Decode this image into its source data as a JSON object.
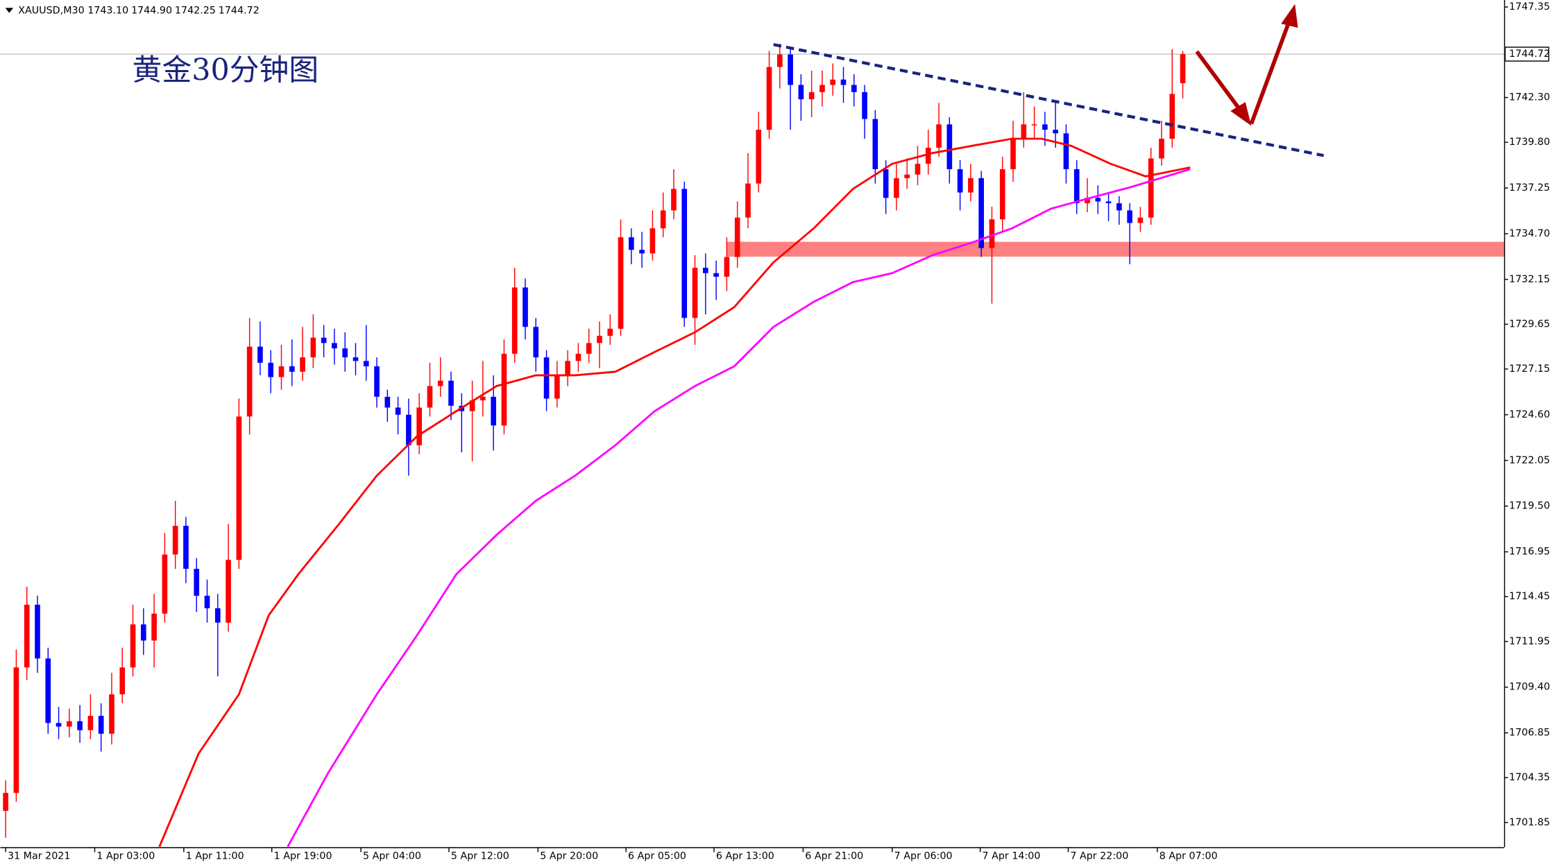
{
  "chart_data": {
    "type": "candlestick",
    "title": "黄金30分钟图",
    "symbol": "XAUUSD,M30",
    "header_values": [
      1743.1,
      1744.9,
      1742.25,
      1744.72
    ],
    "header_value_labels": [
      "1743.10",
      "1744.90",
      "1742.25",
      "1744.72"
    ],
    "up_color": "#ff0000",
    "down_color": "#0000ff",
    "open": [
      1702.5,
      1703.5,
      1710.5,
      1714.0,
      1711.0,
      1707.4,
      1707.2,
      1707.5,
      1707.0,
      1707.8,
      1706.8,
      1709.0,
      1710.5,
      1712.9,
      1712.0,
      1713.5,
      1716.8,
      1718.4,
      1716.0,
      1714.5,
      1713.8,
      1713.0,
      1716.5,
      1724.5,
      1728.4,
      1727.5,
      1726.7,
      1727.3,
      1727.0,
      1727.8,
      1728.9,
      1728.6,
      1728.3,
      1727.8,
      1727.6,
      1727.3,
      1725.6,
      1725.0,
      1724.6,
      1722.9,
      1725.0,
      1726.2,
      1726.5,
      1725.1,
      1724.8,
      1725.4,
      1725.6,
      1724.0,
      1728.0,
      1731.7,
      1729.5,
      1727.8,
      1725.5,
      1726.8,
      1727.6,
      1728.0,
      1728.6,
      1729.0,
      1729.4,
      1734.5,
      1733.8,
      1733.6,
      1735.0,
      1736.0,
      1737.2,
      1730.0,
      1732.8,
      1732.5,
      1732.3,
      1733.4,
      1735.6,
      1737.5,
      1740.5,
      1744.0,
      1744.7,
      1743.0,
      1742.2,
      1742.6,
      1743.0,
      1743.3,
      1743.0,
      1742.6,
      1741.1,
      1738.3,
      1736.7,
      1737.8,
      1738.0,
      1738.6,
      1739.5,
      1740.8,
      1738.3,
      1737.0,
      1737.8,
      1733.9,
      1735.5,
      1738.3,
      1740.0,
      1740.8,
      1740.8,
      1740.5,
      1740.3,
      1738.3,
      1736.4,
      1736.7,
      1736.5,
      1736.4,
      1736.0,
      1735.3,
      1735.6,
      1738.9,
      1740.0,
      1743.1
    ],
    "high": [
      1704.2,
      1711.5,
      1715.0,
      1714.5,
      1711.6,
      1708.3,
      1708.2,
      1708.4,
      1709.0,
      1708.5,
      1710.2,
      1711.6,
      1714.0,
      1713.8,
      1714.6,
      1718.0,
      1719.8,
      1718.9,
      1716.6,
      1715.4,
      1714.6,
      1718.5,
      1725.5,
      1730.0,
      1729.8,
      1728.2,
      1728.5,
      1728.8,
      1729.5,
      1730.2,
      1729.6,
      1729.4,
      1729.2,
      1728.6,
      1729.6,
      1727.8,
      1726.0,
      1725.6,
      1725.5,
      1725.8,
      1727.5,
      1727.8,
      1727.0,
      1725.8,
      1726.5,
      1727.6,
      1726.8,
      1728.8,
      1732.8,
      1732.2,
      1730.0,
      1728.2,
      1727.6,
      1728.2,
      1728.6,
      1729.4,
      1729.8,
      1730.2,
      1735.5,
      1735.0,
      1734.8,
      1736.0,
      1737.0,
      1738.3,
      1737.6,
      1733.5,
      1733.6,
      1733.2,
      1734.5,
      1736.5,
      1739.2,
      1741.5,
      1744.9,
      1745.3,
      1745.0,
      1743.6,
      1743.8,
      1743.8,
      1744.2,
      1744.0,
      1743.6,
      1743.0,
      1741.6,
      1738.8,
      1738.6,
      1738.9,
      1739.6,
      1740.5,
      1742.0,
      1741.2,
      1738.8,
      1738.6,
      1738.2,
      1736.2,
      1739.0,
      1741.0,
      1742.6,
      1741.8,
      1741.5,
      1742.0,
      1740.8,
      1738.8,
      1737.8,
      1737.4,
      1737.0,
      1736.8,
      1736.4,
      1736.2,
      1739.5,
      1741.0,
      1745.0,
      1744.9
    ],
    "low": [
      1701.0,
      1703.0,
      1709.8,
      1710.2,
      1706.8,
      1706.5,
      1706.6,
      1706.3,
      1706.5,
      1705.8,
      1706.2,
      1708.5,
      1710.0,
      1711.2,
      1710.5,
      1713.0,
      1716.0,
      1715.2,
      1713.6,
      1713.0,
      1710.0,
      1712.5,
      1716.0,
      1723.5,
      1726.8,
      1725.8,
      1726.0,
      1726.2,
      1726.5,
      1727.2,
      1727.8,
      1727.4,
      1727.0,
      1726.8,
      1726.5,
      1725.0,
      1724.2,
      1723.5,
      1721.2,
      1722.4,
      1724.5,
      1725.6,
      1724.3,
      1722.5,
      1722.0,
      1724.5,
      1722.6,
      1723.5,
      1727.5,
      1728.8,
      1727.0,
      1724.8,
      1725.0,
      1726.2,
      1727.0,
      1727.5,
      1727.2,
      1728.5,
      1729.0,
      1733.0,
      1732.8,
      1733.2,
      1734.5,
      1735.5,
      1729.5,
      1728.5,
      1730.2,
      1731.0,
      1731.5,
      1732.8,
      1735.0,
      1737.0,
      1740.0,
      1742.8,
      1740.5,
      1741.0,
      1741.2,
      1741.8,
      1742.4,
      1742.0,
      1741.8,
      1740.0,
      1737.5,
      1735.8,
      1736.0,
      1737.2,
      1737.4,
      1738.0,
      1739.0,
      1737.5,
      1736.0,
      1736.5,
      1733.4,
      1730.8,
      1734.8,
      1737.6,
      1739.5,
      1740.0,
      1739.6,
      1739.5,
      1737.5,
      1735.8,
      1735.9,
      1735.8,
      1735.4,
      1735.2,
      1733.0,
      1734.8,
      1735.2,
      1738.5,
      1739.5,
      1742.25
    ],
    "close": [
      1703.5,
      1710.5,
      1714.0,
      1711.0,
      1707.4,
      1707.2,
      1707.5,
      1707.0,
      1707.8,
      1706.8,
      1709.0,
      1710.5,
      1712.9,
      1712.0,
      1713.5,
      1716.8,
      1718.4,
      1716.0,
      1714.5,
      1713.8,
      1713.0,
      1716.5,
      1724.5,
      1728.4,
      1727.5,
      1726.7,
      1727.3,
      1727.0,
      1727.8,
      1728.9,
      1728.6,
      1728.3,
      1727.8,
      1727.6,
      1727.3,
      1725.6,
      1725.0,
      1724.6,
      1722.9,
      1725.0,
      1726.2,
      1726.5,
      1725.1,
      1724.8,
      1725.4,
      1725.6,
      1724.0,
      1728.0,
      1731.7,
      1729.5,
      1727.8,
      1725.5,
      1726.8,
      1727.6,
      1728.0,
      1728.6,
      1729.0,
      1729.4,
      1734.5,
      1733.8,
      1733.6,
      1735.0,
      1736.0,
      1737.2,
      1730.0,
      1732.8,
      1732.5,
      1732.3,
      1733.4,
      1735.6,
      1737.5,
      1740.5,
      1744.0,
      1744.7,
      1743.0,
      1742.2,
      1742.6,
      1743.0,
      1743.3,
      1743.0,
      1742.6,
      1741.1,
      1738.3,
      1736.7,
      1737.8,
      1738.0,
      1738.6,
      1739.5,
      1740.8,
      1738.3,
      1737.0,
      1737.8,
      1733.9,
      1735.5,
      1738.3,
      1740.0,
      1740.8,
      1740.8,
      1740.5,
      1740.3,
      1738.3,
      1736.4,
      1736.7,
      1736.5,
      1736.4,
      1736.0,
      1735.3,
      1735.6,
      1738.9,
      1740.0,
      1742.5,
      1744.72
    ],
    "moving_averages": [
      {
        "color": "#ff0000",
        "x": [
          14.5,
          18.2,
          22.0,
          24.8,
          27.6,
          31.3,
          35.0,
          38.8,
          42.5,
          46.3,
          50.0,
          53.7,
          57.5,
          61.2,
          65.0,
          68.7,
          72.4,
          76.2,
          79.9,
          83.6,
          87.4,
          91.1,
          94.9,
          97.7,
          100.5,
          104.2,
          107.5,
          111.7
        ],
        "values": [
          1700.5,
          1705.7,
          1709.0,
          1713.4,
          1715.7,
          1718.4,
          1721.2,
          1723.4,
          1724.8,
          1726.2,
          1726.8,
          1726.8,
          1727.0,
          1728.1,
          1729.2,
          1730.6,
          1733.1,
          1735.0,
          1737.2,
          1738.6,
          1739.2,
          1739.6,
          1740.0,
          1740.0,
          1739.6,
          1738.6,
          1737.9,
          1738.4
        ]
      },
      {
        "color": "#ff00ff",
        "x": [
          26.6,
          30.4,
          35.0,
          38.8,
          42.5,
          46.3,
          50.0,
          53.7,
          57.5,
          61.2,
          65.0,
          68.7,
          72.4,
          76.2,
          79.9,
          83.6,
          87.4,
          91.1,
          94.9,
          98.6,
          102.3,
          106.1,
          111.7
        ],
        "values": [
          1700.5,
          1704.6,
          1709.0,
          1712.3,
          1715.7,
          1717.9,
          1719.8,
          1721.2,
          1722.9,
          1724.8,
          1726.2,
          1727.3,
          1729.5,
          1730.9,
          1732.0,
          1732.5,
          1733.5,
          1734.2,
          1735.0,
          1736.1,
          1736.7,
          1737.3,
          1738.3
        ]
      }
    ],
    "last_price": {
      "value": 1744.72,
      "label": "1744.72"
    },
    "xlim": [
      -0.5,
      141.3
    ],
    "ylim": [
      1700.47,
      1747.74
    ],
    "xticks": [
      {
        "value": 0,
        "label": "31 Mar 2021"
      },
      {
        "value": 8.4,
        "label": "1 Apr 03:00"
      },
      {
        "value": 16.8,
        "label": "1 Apr 11:00"
      },
      {
        "value": 25.1,
        "label": "1 Apr 19:00"
      },
      {
        "value": 33.5,
        "label": "5 Apr 04:00"
      },
      {
        "value": 41.8,
        "label": "5 Apr 12:00"
      },
      {
        "value": 50.2,
        "label": "5 Apr 20:00"
      },
      {
        "value": 58.5,
        "label": "6 Apr 05:00"
      },
      {
        "value": 66.8,
        "label": "6 Apr 13:00"
      },
      {
        "value": 75.2,
        "label": "6 Apr 21:00"
      },
      {
        "value": 83.6,
        "label": "7 Apr 06:00"
      },
      {
        "value": 91.9,
        "label": "7 Apr 14:00"
      },
      {
        "value": 100.2,
        "label": "7 Apr 22:00"
      },
      {
        "value": 108.6,
        "label": "8 Apr 07:00"
      }
    ],
    "yticks": [
      {
        "value": 1747.35,
        "label": "1747.35"
      },
      {
        "value": 1742.3,
        "label": "1742.30"
      },
      {
        "value": 1739.8,
        "label": "1739.80"
      },
      {
        "value": 1737.25,
        "label": "1737.25"
      },
      {
        "value": 1734.7,
        "label": "1734.70"
      },
      {
        "value": 1732.15,
        "label": "1732.15"
      },
      {
        "value": 1729.65,
        "label": "1729.65"
      },
      {
        "value": 1727.15,
        "label": "1727.15"
      },
      {
        "value": 1724.6,
        "label": "1724.60"
      },
      {
        "value": 1722.05,
        "label": "1722.05"
      },
      {
        "value": 1719.5,
        "label": "1719.50"
      },
      {
        "value": 1716.95,
        "label": "1716.95"
      },
      {
        "value": 1714.45,
        "label": "1714.45"
      },
      {
        "value": 1711.95,
        "label": "1711.95"
      },
      {
        "value": 1709.4,
        "label": "1709.40"
      },
      {
        "value": 1706.85,
        "label": "1706.85"
      },
      {
        "value": 1704.35,
        "label": "1704.35"
      },
      {
        "value": 1701.85,
        "label": "1701.85"
      }
    ]
  }
}
